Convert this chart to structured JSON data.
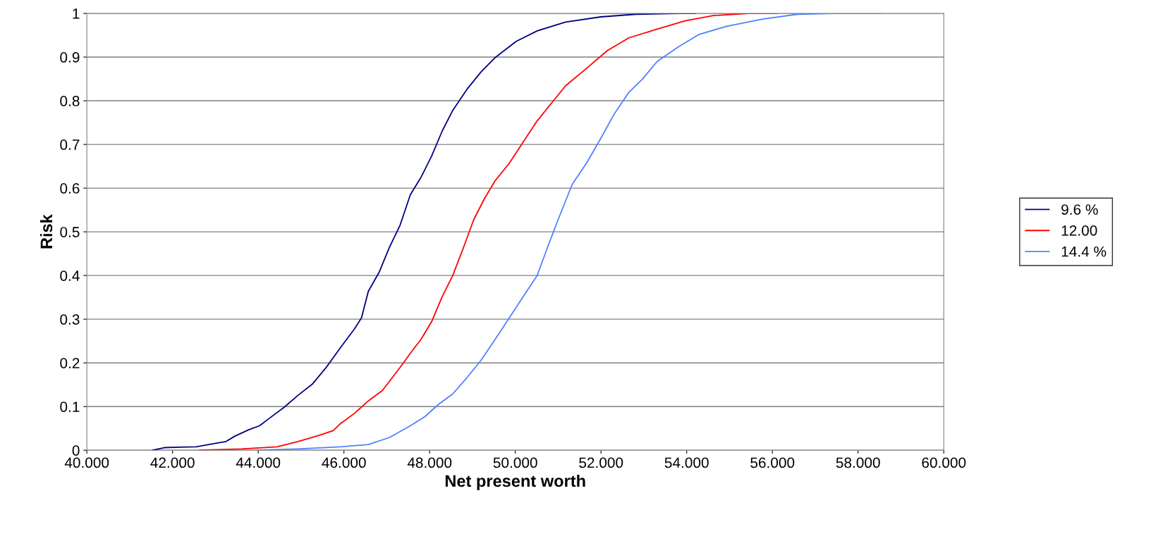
{
  "chart_data": {
    "type": "line",
    "xlabel": "Net present worth",
    "ylabel": "Risk",
    "xlim": [
      40,
      60
    ],
    "ylim": [
      0,
      1
    ],
    "xticks": [
      {
        "value": 40,
        "label": "40.000"
      },
      {
        "value": 42,
        "label": "42.000"
      },
      {
        "value": 44,
        "label": "44.000"
      },
      {
        "value": 46,
        "label": "46.000"
      },
      {
        "value": 48,
        "label": "48.000"
      },
      {
        "value": 50,
        "label": "50.000"
      },
      {
        "value": 52,
        "label": "52.000"
      },
      {
        "value": 54,
        "label": "54.000"
      },
      {
        "value": 56,
        "label": "56.000"
      },
      {
        "value": 58,
        "label": "58.000"
      },
      {
        "value": 60,
        "label": "60.000"
      }
    ],
    "yticks": [
      0,
      0.1,
      0.2,
      0.3,
      0.4,
      0.5,
      0.6,
      0.7,
      0.8,
      0.9,
      1
    ],
    "grid": "y",
    "legend": "right",
    "marker": "none",
    "line_style": "solid",
    "series": [
      {
        "name": "9.6 %",
        "color": "#000080",
        "x": [
          41.53,
          41.81,
          42.55,
          42.96,
          43.25,
          43.45,
          43.78,
          44.03,
          44.27,
          44.6,
          44.93,
          45.26,
          45.59,
          45.92,
          46.24,
          46.41,
          46.57,
          46.82,
          47.06,
          47.31,
          47.55,
          47.8,
          48.05,
          48.29,
          48.54,
          48.87,
          49.2,
          49.53,
          50.02,
          50.51,
          51.17,
          51.99,
          52.81,
          53.8,
          54.2
        ],
        "values": [
          0,
          0.006,
          0.008,
          0.015,
          0.02,
          0.032,
          0.047,
          0.056,
          0.074,
          0.098,
          0.126,
          0.151,
          0.19,
          0.235,
          0.277,
          0.303,
          0.364,
          0.407,
          0.464,
          0.515,
          0.585,
          0.625,
          0.674,
          0.73,
          0.778,
          0.826,
          0.866,
          0.899,
          0.936,
          0.96,
          0.98,
          0.992,
          0.998,
          1.0,
          1.0
        ]
      },
      {
        "name": "12.00",
        "color": "#ff0000",
        "x": [
          42.63,
          43.62,
          44.44,
          44.93,
          45.42,
          45.75,
          45.92,
          46.24,
          46.57,
          46.9,
          47.15,
          47.39,
          47.55,
          47.8,
          48.05,
          48.29,
          48.54,
          48.79,
          49.03,
          49.28,
          49.53,
          49.86,
          50.18,
          50.51,
          50.84,
          51.17,
          51.66,
          52.15,
          52.65,
          53.31,
          53.96,
          54.62,
          55.44,
          56.1
        ],
        "values": [
          0,
          0.003,
          0.008,
          0.02,
          0.034,
          0.045,
          0.061,
          0.084,
          0.113,
          0.137,
          0.169,
          0.2,
          0.222,
          0.254,
          0.295,
          0.351,
          0.4,
          0.464,
          0.528,
          0.576,
          0.617,
          0.657,
          0.705,
          0.754,
          0.794,
          0.834,
          0.874,
          0.915,
          0.944,
          0.964,
          0.983,
          0.995,
          1.0,
          1.0
        ]
      },
      {
        "name": "14.4 %",
        "color": "#4f81ff",
        "x": [
          43.95,
          44.93,
          45.92,
          46.57,
          47.06,
          47.55,
          47.89,
          48.22,
          48.54,
          48.87,
          49.2,
          49.53,
          49.86,
          50.18,
          50.51,
          50.75,
          51.0,
          51.33,
          51.66,
          51.99,
          52.31,
          52.64,
          52.97,
          53.31,
          53.8,
          54.29,
          54.95,
          55.77,
          56.59,
          57.4,
          58.56
        ],
        "values": [
          0,
          0.003,
          0.008,
          0.013,
          0.029,
          0.056,
          0.077,
          0.106,
          0.129,
          0.166,
          0.206,
          0.254,
          0.303,
          0.351,
          0.4,
          0.464,
          0.528,
          0.609,
          0.657,
          0.713,
          0.77,
          0.818,
          0.85,
          0.89,
          0.923,
          0.952,
          0.971,
          0.987,
          0.998,
          1.0,
          1.0
        ]
      }
    ]
  }
}
